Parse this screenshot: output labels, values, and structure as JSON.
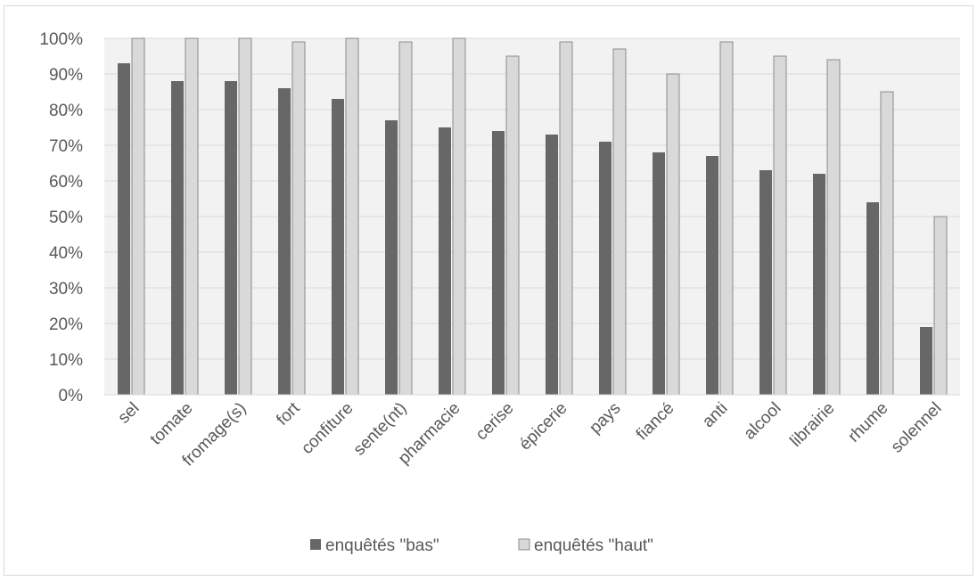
{
  "chart_data": {
    "type": "bar",
    "categories": [
      "sel",
      "tomate",
      "fromage(s)",
      "fort",
      "confiture",
      "sente(nt)",
      "pharmacie",
      "cerise",
      "épicerie",
      "pays",
      "fiancé",
      "anti",
      "alcool",
      "librairie",
      "rhume",
      "solennel"
    ],
    "series": [
      {
        "name": "enquêtés \"bas\"",
        "values": [
          93,
          88,
          88,
          86,
          83,
          77,
          75,
          74,
          73,
          71,
          68,
          67,
          63,
          62,
          54,
          19
        ],
        "color": "#676767"
      },
      {
        "name": "enquêtés \"haut\"",
        "values": [
          100,
          100,
          100,
          99,
          100,
          99,
          100,
          95,
          99,
          97,
          90,
          99,
          95,
          94,
          85,
          50
        ],
        "color": "#d9d9d9"
      }
    ],
    "ylim": [
      0,
      100
    ],
    "ytick_labels": [
      "0%",
      "10%",
      "20%",
      "30%",
      "40%",
      "50%",
      "60%",
      "70%",
      "80%",
      "90%",
      "100%"
    ],
    "grid": true,
    "legend_position": "bottom",
    "plot_background": "#f2f2f2"
  }
}
